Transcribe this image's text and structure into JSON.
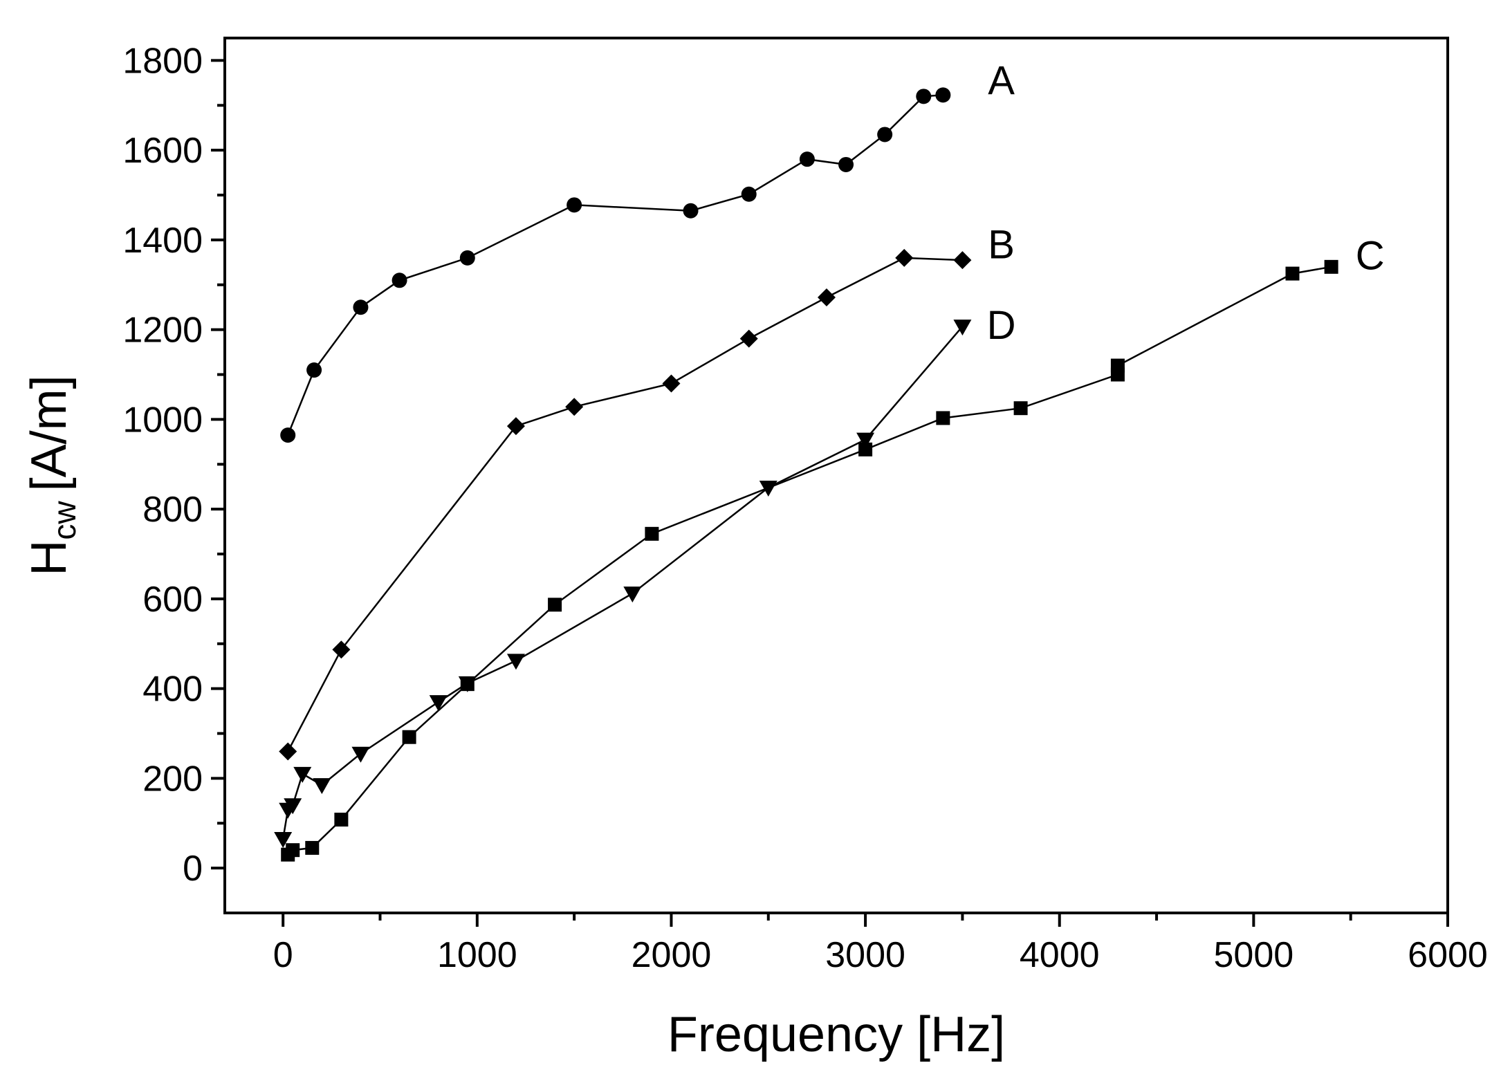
{
  "chart_data": {
    "type": "line",
    "title": "",
    "xlabel": "Frequency [Hz]",
    "ylabel": {
      "main": "H",
      "subscript": "cw",
      "unit": "[A/m]"
    },
    "xlim": [
      -300,
      6000
    ],
    "ylim": [
      -100,
      1850
    ],
    "xticks": [
      0,
      1000,
      2000,
      3000,
      4000,
      5000,
      6000
    ],
    "yticks": [
      0,
      200,
      400,
      600,
      800,
      1000,
      1200,
      1400,
      1600,
      1800
    ],
    "grid": false,
    "series": [
      {
        "name": "A",
        "marker": "circle",
        "x": [
          25,
          160,
          400,
          600,
          950,
          1500,
          2100,
          2400,
          2700,
          2900,
          3100,
          3300,
          3400
        ],
        "y": [
          965,
          1110,
          1250,
          1310,
          1360,
          1478,
          1465,
          1502,
          1580,
          1568,
          1635,
          1720,
          1723
        ],
        "label_pos": [
          3700,
          1755
        ]
      },
      {
        "name": "B",
        "marker": "diamond",
        "x": [
          25,
          300,
          1200,
          1500,
          2000,
          2400,
          2800,
          3200,
          3500
        ],
        "y": [
          260,
          487,
          985,
          1028,
          1080,
          1180,
          1272,
          1360,
          1355
        ],
        "label_pos": [
          3700,
          1390
        ]
      },
      {
        "name": "C",
        "marker": "square",
        "x": [
          25,
          50,
          150,
          300,
          650,
          950,
          1400,
          1900,
          3000,
          3400,
          3800,
          4300,
          4300,
          5200,
          5400
        ],
        "y": [
          30,
          40,
          45,
          108,
          292,
          410,
          587,
          745,
          933,
          1003,
          1025,
          1100,
          1120,
          1325,
          1340
        ],
        "label_pos": [
          5600,
          1365
        ]
      },
      {
        "name": "D",
        "marker": "triangle-down",
        "x": [
          0,
          25,
          50,
          100,
          200,
          400,
          800,
          950,
          1200,
          1800,
          2500,
          3000,
          3500
        ],
        "y": [
          65,
          130,
          140,
          210,
          185,
          255,
          370,
          412,
          462,
          612,
          848,
          955,
          1207
        ],
        "label_pos": [
          3700,
          1210
        ]
      }
    ]
  }
}
